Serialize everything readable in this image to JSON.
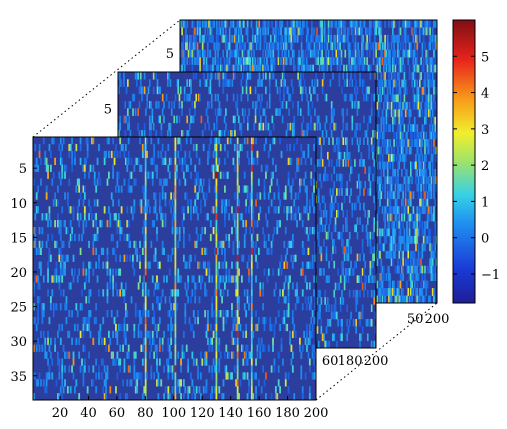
{
  "chart_data": {
    "type": "heatmap",
    "title": "",
    "xlabel": "",
    "ylabel": "",
    "layers": [
      {
        "name": "",
        "x_ticks": [
          200
        ],
        "x_partial_tick": "50",
        "y_ticks": [
          5
        ]
      },
      {
        "name": "",
        "x_ticks": [
          180,
          200
        ],
        "x_partial_tick": "60",
        "y_ticks": [
          5
        ]
      },
      {
        "name": "",
        "x_ticks": [
          20,
          40,
          60,
          80,
          100,
          120,
          140,
          160,
          180,
          200
        ],
        "y_ticks": [
          5,
          10,
          15,
          20,
          25,
          30,
          35
        ]
      }
    ],
    "matrix_size": {
      "rows": 38,
      "cols": 200
    },
    "xlim": [
      1,
      200
    ],
    "ylim": [
      1,
      38
    ],
    "colorbar": {
      "ticks": [
        -1,
        0,
        1,
        2,
        3,
        4,
        5
      ],
      "range": [
        -1.8,
        6
      ],
      "colormap": [
        "#00008f",
        "#0000ff",
        "#00ffff",
        "#ffff00",
        "#ff0000",
        "#800000"
      ]
    },
    "background_color": "#2b3e9e",
    "hot_columns_front": [
      80,
      101,
      130,
      145,
      155
    ]
  }
}
